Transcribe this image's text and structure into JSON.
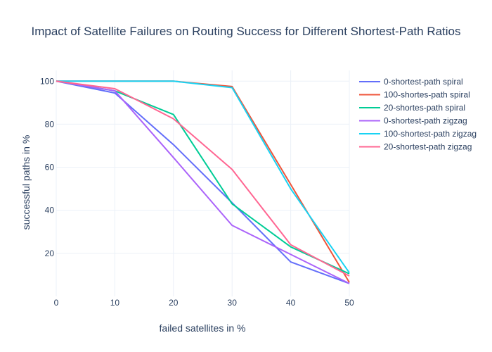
{
  "chart_data": {
    "type": "line",
    "title": "Impact of Satellite Failures on Routing Success for Different Shortest-Path Ratios",
    "xlabel": "failed satellites in %",
    "ylabel": "successful paths in %",
    "x": [
      0,
      10,
      20,
      30,
      40,
      50
    ],
    "xlim": [
      0,
      50
    ],
    "ylim": [
      0,
      105
    ],
    "xticks": [
      0,
      10,
      20,
      30,
      40,
      50
    ],
    "yticks": [
      20,
      40,
      60,
      80,
      100
    ],
    "grid": true,
    "legend_position": "top-right",
    "series": [
      {
        "name": "0-shortest-path spiral",
        "color": "#636efa",
        "values": [
          100,
          94.5,
          70.5,
          43.5,
          16,
          6
        ]
      },
      {
        "name": "100-shortes-path spiral",
        "color": "#ef553b",
        "values": [
          100,
          100,
          100,
          97.5,
          52,
          6.5
        ]
      },
      {
        "name": "20-shortes-path spiral",
        "color": "#00cc96",
        "values": [
          100,
          95.5,
          84.5,
          43,
          23,
          10.5
        ]
      },
      {
        "name": "0-shortest-path zigzag",
        "color": "#ab63fa",
        "values": [
          100,
          95.5,
          64.5,
          33,
          19.5,
          6
        ]
      },
      {
        "name": "100-shortest-path zigzag",
        "color": "#19d3f3",
        "values": [
          100,
          100,
          100,
          97,
          50,
          11
        ]
      },
      {
        "name": "20-shortest-path zigzag",
        "color": "#ff6692",
        "values": [
          100,
          96.5,
          82.5,
          59,
          24,
          9.5
        ]
      }
    ]
  }
}
